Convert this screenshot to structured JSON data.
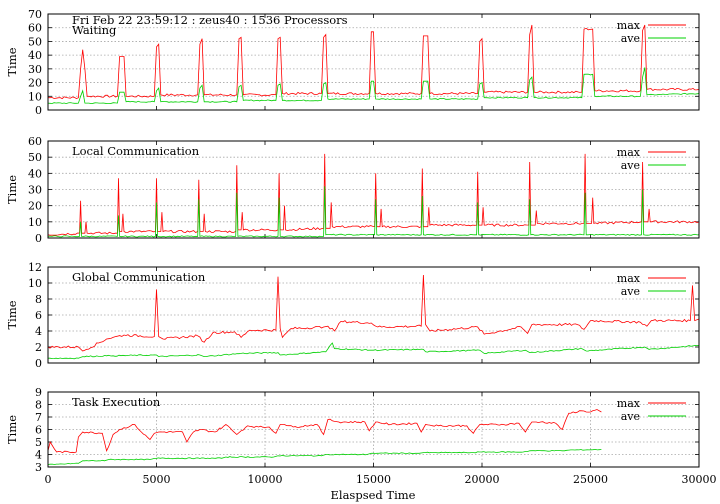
{
  "header": "Fri Feb 22 23:59:12 : zeus40 : 1536 Processors",
  "xlabel": "Elaspsed Time",
  "colors": {
    "max": "#ff0000",
    "ave": "#00d000",
    "grid": "#a8a8a8",
    "frame": "#000000"
  },
  "chart_data": [
    {
      "type": "line",
      "title": "Waiting",
      "ylabel": "Time",
      "xlim": [
        0,
        30000
      ],
      "ylim": [
        0,
        70
      ],
      "xticks": [
        0,
        5000,
        10000,
        15000,
        20000,
        25000,
        30000
      ],
      "yticks": [
        0,
        10,
        20,
        30,
        40,
        50,
        60,
        70
      ],
      "grid": "y",
      "legend": [
        "max",
        "ave"
      ],
      "legend_position": "top-right",
      "series": [
        {
          "name": "max",
          "x": [
            0,
            1400,
            1500,
            1600,
            1700,
            1800,
            3200,
            3300,
            3500,
            3600,
            4900,
            5000,
            5100,
            5200,
            6900,
            7000,
            7100,
            7200,
            8700,
            8800,
            8900,
            9000,
            10500,
            10600,
            10700,
            10800,
            12600,
            12700,
            12800,
            12900,
            14800,
            14900,
            15000,
            15100,
            17200,
            17300,
            17500,
            17600,
            19800,
            19900,
            20000,
            20100,
            22100,
            22200,
            22300,
            22400,
            24600,
            24700,
            25100,
            25200,
            27300,
            27400,
            27500,
            27600,
            30000
          ],
          "y": [
            9,
            9,
            30,
            44,
            30,
            10,
            10,
            39,
            39,
            10,
            10,
            46,
            48,
            11,
            11,
            48,
            52,
            11,
            11,
            52,
            53,
            11,
            11,
            52,
            53,
            12,
            12,
            53,
            55,
            12,
            12,
            57,
            57,
            12,
            12,
            54,
            54,
            12,
            12,
            50,
            52,
            13,
            13,
            55,
            62,
            13,
            13,
            59,
            59,
            14,
            14,
            58,
            62,
            15,
            15
          ]
        },
        {
          "name": "ave",
          "x": [
            0,
            1400,
            1500,
            1600,
            1700,
            3200,
            3300,
            3500,
            3600,
            4900,
            5000,
            5100,
            5200,
            6900,
            7000,
            7100,
            7200,
            8700,
            8800,
            8900,
            9000,
            10500,
            10600,
            10700,
            10800,
            12600,
            12700,
            12800,
            12900,
            14800,
            14900,
            15000,
            15100,
            17200,
            17300,
            17500,
            17600,
            19800,
            19900,
            20000,
            20100,
            22100,
            22200,
            22300,
            22400,
            24600,
            24700,
            25100,
            25200,
            27300,
            27400,
            27500,
            27600,
            30000
          ],
          "y": [
            5,
            5,
            10,
            14,
            5,
            5,
            13,
            13,
            6,
            6,
            14,
            16,
            6,
            6,
            16,
            18,
            6,
            6,
            17,
            18,
            7,
            7,
            18,
            19,
            7,
            7,
            19,
            20,
            8,
            8,
            21,
            21,
            8,
            8,
            21,
            21,
            8,
            8,
            19,
            20,
            9,
            9,
            22,
            24,
            9,
            9,
            26,
            26,
            10,
            10,
            24,
            31,
            11,
            12
          ]
        }
      ]
    },
    {
      "type": "line",
      "title": "Local Communication",
      "ylabel": "Time",
      "xlim": [
        0,
        30000
      ],
      "ylim": [
        0,
        60
      ],
      "xticks": [
        0,
        5000,
        10000,
        15000,
        20000,
        25000,
        30000
      ],
      "yticks": [
        0,
        10,
        20,
        30,
        40,
        50,
        60
      ],
      "grid": "y",
      "legend": [
        "max",
        "ave"
      ],
      "legend_position": "top-right",
      "series": [
        {
          "name": "max",
          "x": [
            0,
            1450,
            1500,
            1550,
            1700,
            1750,
            1800,
            3200,
            3250,
            3300,
            3400,
            3450,
            3500,
            4950,
            5000,
            5050,
            5200,
            5250,
            5300,
            6900,
            6950,
            7000,
            7150,
            7200,
            7250,
            8650,
            8700,
            8750,
            8900,
            8950,
            9000,
            10600,
            10650,
            10700,
            10850,
            10900,
            10950,
            12700,
            12750,
            12800,
            13000,
            13050,
            13100,
            15050,
            15100,
            15150,
            15300,
            15350,
            15400,
            17200,
            17250,
            17300,
            17500,
            17550,
            17600,
            19750,
            19800,
            19850,
            20000,
            20050,
            20100,
            22150,
            22200,
            22250,
            22450,
            22500,
            22550,
            24700,
            24750,
            24800,
            25050,
            25100,
            25150,
            27350,
            27400,
            27450,
            27650,
            27700,
            27750,
            30000
          ],
          "y": [
            2,
            3,
            23,
            3,
            3,
            10,
            3,
            3,
            37,
            4,
            4,
            15,
            4,
            4,
            37,
            4,
            4,
            16,
            4,
            4,
            36,
            4,
            4,
            15,
            4,
            4,
            45,
            5,
            5,
            16,
            5,
            5,
            40,
            5,
            5,
            20,
            5,
            6,
            52,
            6,
            6,
            22,
            7,
            7,
            40,
            7,
            7,
            18,
            7,
            7,
            43,
            7,
            7,
            19,
            8,
            8,
            41,
            8,
            8,
            19,
            8,
            8,
            47,
            8,
            8,
            17,
            9,
            9,
            52,
            9,
            9,
            25,
            9,
            10,
            47,
            10,
            10,
            18,
            10,
            10
          ]
        },
        {
          "name": "ave",
          "x": [
            0,
            1450,
            1500,
            1550,
            3200,
            3250,
            3300,
            4950,
            5000,
            5050,
            6900,
            6950,
            7000,
            8650,
            8700,
            8750,
            10600,
            10650,
            10700,
            12700,
            12750,
            12800,
            15050,
            15100,
            15150,
            17200,
            17250,
            17300,
            19750,
            19800,
            19850,
            22150,
            22200,
            22250,
            24700,
            24750,
            24800,
            27350,
            27400,
            27450,
            30000
          ],
          "y": [
            1,
            1,
            10,
            1,
            1,
            14,
            1,
            1,
            22,
            1,
            1,
            24,
            1,
            1,
            28,
            1,
            1,
            25,
            1,
            1,
            32,
            2,
            2,
            24,
            2,
            2,
            26,
            2,
            2,
            22,
            2,
            2,
            24,
            2,
            2,
            28,
            2,
            2,
            30,
            2,
            2
          ]
        }
      ]
    },
    {
      "type": "line",
      "title": "Global Communication",
      "ylabel": "Time",
      "xlim": [
        0,
        30000
      ],
      "ylim": [
        0,
        12
      ],
      "xticks": [
        0,
        5000,
        10000,
        15000,
        20000,
        25000,
        30000
      ],
      "yticks": [
        0,
        2,
        4,
        6,
        8,
        10,
        12
      ],
      "grid": "y",
      "legend": [
        "max",
        "ave"
      ],
      "legend_position": "top-right",
      "series": [
        {
          "name": "max",
          "x": [
            0,
            1400,
            1600,
            2700,
            3000,
            3500,
            4900,
            5000,
            5100,
            5300,
            6900,
            7200,
            7600,
            8600,
            8900,
            9300,
            10500,
            10600,
            10700,
            10800,
            11200,
            12700,
            12900,
            13200,
            13500,
            14900,
            15200,
            17200,
            17300,
            17400,
            17600,
            19800,
            20100,
            21800,
            22100,
            22300,
            24400,
            24700,
            25000,
            27300,
            27600,
            27800,
            29600,
            29700,
            29800,
            30000
          ],
          "y": [
            2,
            2,
            1.5,
            3,
            3.2,
            3.5,
            3.3,
            9.2,
            3.3,
            3.0,
            3.4,
            2.6,
            3.8,
            3.9,
            3.2,
            4.1,
            4.1,
            10.8,
            4.3,
            3.2,
            4.3,
            4.5,
            4.6,
            4.0,
            5.2,
            5.0,
            4.5,
            4.6,
            11,
            4.8,
            4.0,
            4.5,
            3.6,
            4.5,
            3.7,
            4.8,
            4.8,
            4.2,
            5.3,
            5.1,
            4.6,
            5.3,
            5.3,
            9.7,
            5.3,
            5.5
          ]
        },
        {
          "name": "ave",
          "x": [
            0,
            1400,
            1600,
            2700,
            3000,
            5000,
            5100,
            7000,
            7200,
            8900,
            10600,
            10700,
            12800,
            13100,
            13200,
            15000,
            17300,
            17400,
            19900,
            20100,
            22000,
            22200,
            24600,
            24800,
            27500,
            27700,
            30000
          ],
          "y": [
            0.6,
            0.6,
            0.8,
            0.9,
            0.9,
            1.0,
            0.8,
            1.0,
            0.8,
            1.2,
            1.3,
            1.0,
            1.4,
            2.5,
            1.8,
            1.6,
            1.7,
            1.4,
            1.6,
            1.2,
            1.6,
            1.3,
            1.8,
            1.5,
            2.0,
            1.7,
            2.2
          ]
        }
      ]
    },
    {
      "type": "line",
      "title": "Task Execution",
      "ylabel": "Time",
      "xlim": [
        0,
        30000
      ],
      "ylim": [
        3,
        9
      ],
      "xticks": [
        0,
        5000,
        10000,
        15000,
        20000,
        25000,
        30000
      ],
      "yticks": [
        3,
        4,
        5,
        6,
        7,
        8,
        9
      ],
      "grid": "both",
      "legend": [
        "max",
        "ave"
      ],
      "legend_position": "top-right",
      "series": [
        {
          "name": "max",
          "x": [
            0,
            100,
            400,
            1300,
            1400,
            1600,
            2500,
            2700,
            3000,
            3300,
            4000,
            4300,
            4700,
            4900,
            5100,
            6200,
            6400,
            6700,
            7000,
            7700,
            8200,
            8700,
            8900,
            9200,
            9700,
            10200,
            10500,
            10700,
            10900,
            11300,
            12400,
            12700,
            12900,
            13400,
            14600,
            14800,
            15100,
            15800,
            17000,
            17200,
            17400,
            18000,
            19300,
            19600,
            19900,
            21000,
            21700,
            22000,
            22300,
            22700,
            23400,
            23700,
            24000,
            24600,
            25000,
            25300,
            25500
          ],
          "y": [
            4.3,
            5.0,
            4.2,
            4.2,
            5.4,
            5.8,
            5.7,
            4.3,
            5.6,
            6.0,
            6.4,
            5.8,
            5.2,
            5.7,
            5.8,
            5.8,
            5.0,
            5.8,
            6.0,
            5.8,
            6.4,
            5.6,
            5.9,
            6.3,
            6.2,
            6.2,
            5.7,
            6.4,
            6.4,
            6.2,
            6.4,
            5.6,
            6.8,
            6.6,
            6.6,
            5.9,
            6.6,
            6.4,
            6.5,
            5.8,
            6.4,
            6.3,
            6.3,
            5.7,
            6.4,
            6.4,
            6.5,
            5.8,
            6.6,
            6.6,
            6.5,
            6.0,
            7.3,
            7.5,
            7.4,
            7.6,
            7.4
          ]
        },
        {
          "name": "ave",
          "x": [
            0,
            300,
            1400,
            1600,
            2600,
            2800,
            4700,
            5000,
            8000,
            8200,
            10400,
            10600,
            12600,
            12800,
            14700,
            14900,
            17100,
            17300,
            19600,
            19900,
            21900,
            22200,
            23700,
            24000,
            25500
          ],
          "y": [
            3.2,
            3.2,
            3.3,
            3.5,
            3.5,
            3.6,
            3.6,
            3.7,
            3.7,
            3.8,
            3.8,
            3.9,
            3.9,
            4.0,
            4.0,
            4.1,
            4.1,
            4.15,
            4.15,
            4.2,
            4.2,
            4.3,
            4.3,
            4.35,
            4.4
          ]
        }
      ]
    }
  ]
}
